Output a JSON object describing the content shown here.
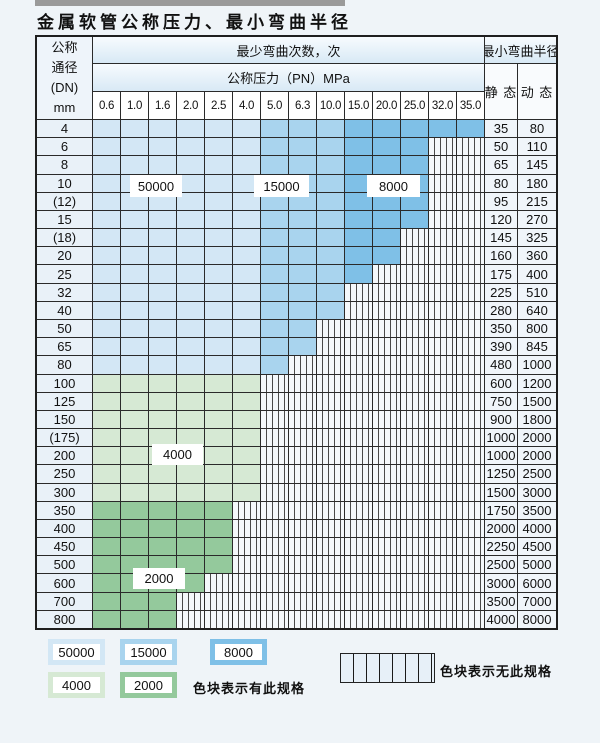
{
  "title": "金属软管公称压力、最小弯曲半径",
  "table": {
    "corner": {
      "l1": "公称",
      "l2": "通径",
      "l3": "(DN)",
      "l4": "mm"
    },
    "bend_cycles_header": "最少弯曲次数，次",
    "pressure_header": "公称压力（PN）MPa",
    "radius_header": "最小弯曲半径",
    "static_header": "静 态",
    "dynamic_header": "动 态",
    "pressures": [
      "0.6",
      "1.0",
      "1.6",
      "2.0",
      "2.5",
      "4.0",
      "5.0",
      "6.3",
      "10.0",
      "15.0",
      "20.0",
      "25.0",
      "32.0",
      "35.0"
    ],
    "rows": [
      {
        "dn": "4",
        "fill": "blue",
        "last": 13,
        "static": "35",
        "dynamic": "80"
      },
      {
        "dn": "6",
        "fill": "blue",
        "last": 11,
        "static": "50",
        "dynamic": "110"
      },
      {
        "dn": "8",
        "fill": "blue",
        "last": 11,
        "static": "65",
        "dynamic": "145"
      },
      {
        "dn": "10",
        "fill": "blue",
        "last": 11,
        "static": "80",
        "dynamic": "180"
      },
      {
        "dn": "(12)",
        "fill": "blue",
        "last": 11,
        "static": "95",
        "dynamic": "215"
      },
      {
        "dn": "15",
        "fill": "blue",
        "last": 11,
        "static": "120",
        "dynamic": "270"
      },
      {
        "dn": "(18)",
        "fill": "blue",
        "last": 10,
        "static": "145",
        "dynamic": "325"
      },
      {
        "dn": "20",
        "fill": "blue",
        "last": 10,
        "static": "160",
        "dynamic": "360"
      },
      {
        "dn": "25",
        "fill": "blue",
        "last": 9,
        "static": "175",
        "dynamic": "400"
      },
      {
        "dn": "32",
        "fill": "blue",
        "last": 8,
        "static": "225",
        "dynamic": "510"
      },
      {
        "dn": "40",
        "fill": "blue",
        "last": 8,
        "static": "280",
        "dynamic": "640"
      },
      {
        "dn": "50",
        "fill": "blue",
        "last": 7,
        "static": "350",
        "dynamic": "800"
      },
      {
        "dn": "65",
        "fill": "blue",
        "last": 7,
        "static": "390",
        "dynamic": "845"
      },
      {
        "dn": "80",
        "fill": "blue",
        "last": 6,
        "static": "480",
        "dynamic": "1000"
      },
      {
        "dn": "100",
        "fill": "g1",
        "last": 5,
        "static": "600",
        "dynamic": "1200"
      },
      {
        "dn": "125",
        "fill": "g1",
        "last": 5,
        "static": "750",
        "dynamic": "1500"
      },
      {
        "dn": "150",
        "fill": "g1",
        "last": 5,
        "static": "900",
        "dynamic": "1800"
      },
      {
        "dn": "(175)",
        "fill": "g1",
        "last": 5,
        "static": "1000",
        "dynamic": "2000"
      },
      {
        "dn": "200",
        "fill": "g1",
        "last": 5,
        "static": "1000",
        "dynamic": "2000"
      },
      {
        "dn": "250",
        "fill": "g1",
        "last": 5,
        "static": "1250",
        "dynamic": "2500"
      },
      {
        "dn": "300",
        "fill": "g1",
        "last": 5,
        "static": "1500",
        "dynamic": "3000"
      },
      {
        "dn": "350",
        "fill": "g2",
        "last": 4,
        "static": "1750",
        "dynamic": "3500"
      },
      {
        "dn": "400",
        "fill": "g2",
        "last": 4,
        "static": "2000",
        "dynamic": "4000"
      },
      {
        "dn": "450",
        "fill": "g2",
        "last": 4,
        "static": "2250",
        "dynamic": "4500"
      },
      {
        "dn": "500",
        "fill": "g2",
        "last": 4,
        "static": "2500",
        "dynamic": "5000"
      },
      {
        "dn": "600",
        "fill": "g2",
        "last": 3,
        "static": "3000",
        "dynamic": "6000"
      },
      {
        "dn": "700",
        "fill": "g2",
        "last": 2,
        "static": "3500",
        "dynamic": "7000"
      },
      {
        "dn": "800",
        "fill": "g2",
        "last": 2,
        "static": "4000",
        "dynamic": "8000"
      }
    ]
  },
  "bands": {
    "blue_columns": {
      "b1": [
        0,
        5
      ],
      "b2": [
        6,
        8
      ],
      "b3": [
        9,
        13
      ]
    }
  },
  "colors": {
    "c50000": "#d3e7f5",
    "c15000": "#a9d4ee",
    "c8000": "#7fc0e7",
    "c4000": "#d6e9d4",
    "c2000": "#94c99c"
  },
  "overlay_labels": [
    {
      "text": "50000"
    },
    {
      "text": "15000"
    },
    {
      "text": "8000"
    },
    {
      "text": "4000"
    },
    {
      "text": "2000"
    }
  ],
  "legend": {
    "items": [
      {
        "label": "50000",
        "color_key": "c50000"
      },
      {
        "label": "15000",
        "color_key": "c15000"
      },
      {
        "label": "8000",
        "color_key": "c8000"
      },
      {
        "label": "4000",
        "color_key": "c4000"
      },
      {
        "label": "2000",
        "color_key": "c2000"
      }
    ],
    "has_note": "色块表示有此规格",
    "none_note": "色块表示无此规格"
  }
}
